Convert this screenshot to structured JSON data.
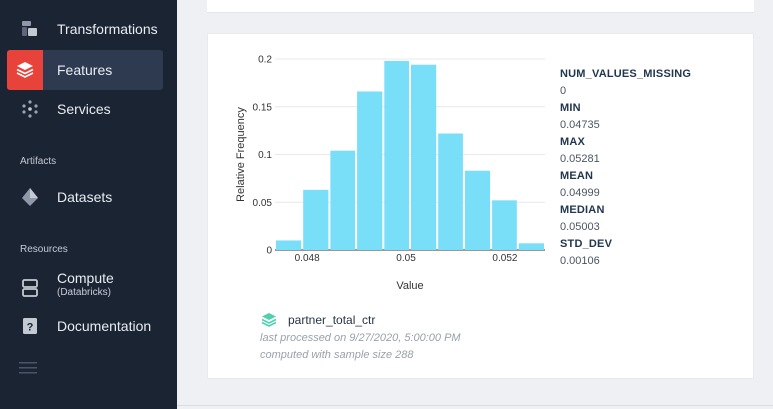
{
  "sidebar": {
    "items": [
      {
        "label": "Transformations",
        "icon": "transformations-icon"
      },
      {
        "label": "Features",
        "icon": "features-icon",
        "active": true
      },
      {
        "label": "Services",
        "icon": "services-icon"
      }
    ],
    "artifacts_title": "Artifacts",
    "artifacts": [
      {
        "label": "Datasets",
        "icon": "datasets-icon"
      }
    ],
    "resources_title": "Resources",
    "resources": [
      {
        "label": "Compute",
        "sub": "(Databricks)",
        "icon": "compute-icon"
      },
      {
        "label": "Documentation",
        "icon": "documentation-icon"
      }
    ],
    "menu_icon": "hamburger-menu-icon"
  },
  "colors": {
    "sidebar_bg": "#1b2433",
    "active_bg": "#2d3a4f",
    "bar": "#79def7",
    "features_icon": "#e8433a",
    "feature_badge": "#4fd1b0"
  },
  "feature": {
    "name": "partner_total_ctr",
    "last_processed": "last processed on 9/27/2020, 5:00:00 PM",
    "computed_with": "computed with sample size 288"
  },
  "stats": [
    {
      "name": "NUM_VALUES_MISSING",
      "value": "0"
    },
    {
      "name": "MIN",
      "value": "0.04735"
    },
    {
      "name": "MAX",
      "value": "0.05281"
    },
    {
      "name": "MEAN",
      "value": "0.04999"
    },
    {
      "name": "MEDIAN",
      "value": "0.05003"
    },
    {
      "name": "STD_DEV",
      "value": "0.00106"
    }
  ],
  "chart_data": {
    "type": "bar",
    "xlabel": "Value",
    "ylabel": "Relative Frequency",
    "x_ticks": [
      "0.048",
      "0.05",
      "0.052"
    ],
    "x_tick_values": [
      0.048,
      0.05,
      0.052
    ],
    "y_ticks": [
      "0",
      "0.05",
      "0.1",
      "0.15",
      "0.2"
    ],
    "y_tick_values": [
      0,
      0.05,
      0.1,
      0.15,
      0.2
    ],
    "xlim": [
      0.04735,
      0.05281
    ],
    "ylim": [
      0,
      0.2
    ],
    "bins": [
      {
        "start": 0.04735,
        "end": 0.0479,
        "value": 0.01
      },
      {
        "start": 0.0479,
        "end": 0.04845,
        "value": 0.063
      },
      {
        "start": 0.04845,
        "end": 0.04899,
        "value": 0.104
      },
      {
        "start": 0.04899,
        "end": 0.04954,
        "value": 0.166
      },
      {
        "start": 0.04954,
        "end": 0.05008,
        "value": 0.198
      },
      {
        "start": 0.05008,
        "end": 0.05063,
        "value": 0.194
      },
      {
        "start": 0.05063,
        "end": 0.05117,
        "value": 0.122
      },
      {
        "start": 0.05117,
        "end": 0.05172,
        "value": 0.083
      },
      {
        "start": 0.05172,
        "end": 0.05226,
        "value": 0.052
      },
      {
        "start": 0.05226,
        "end": 0.05281,
        "value": 0.007
      }
    ],
    "grid": "horizontal"
  }
}
